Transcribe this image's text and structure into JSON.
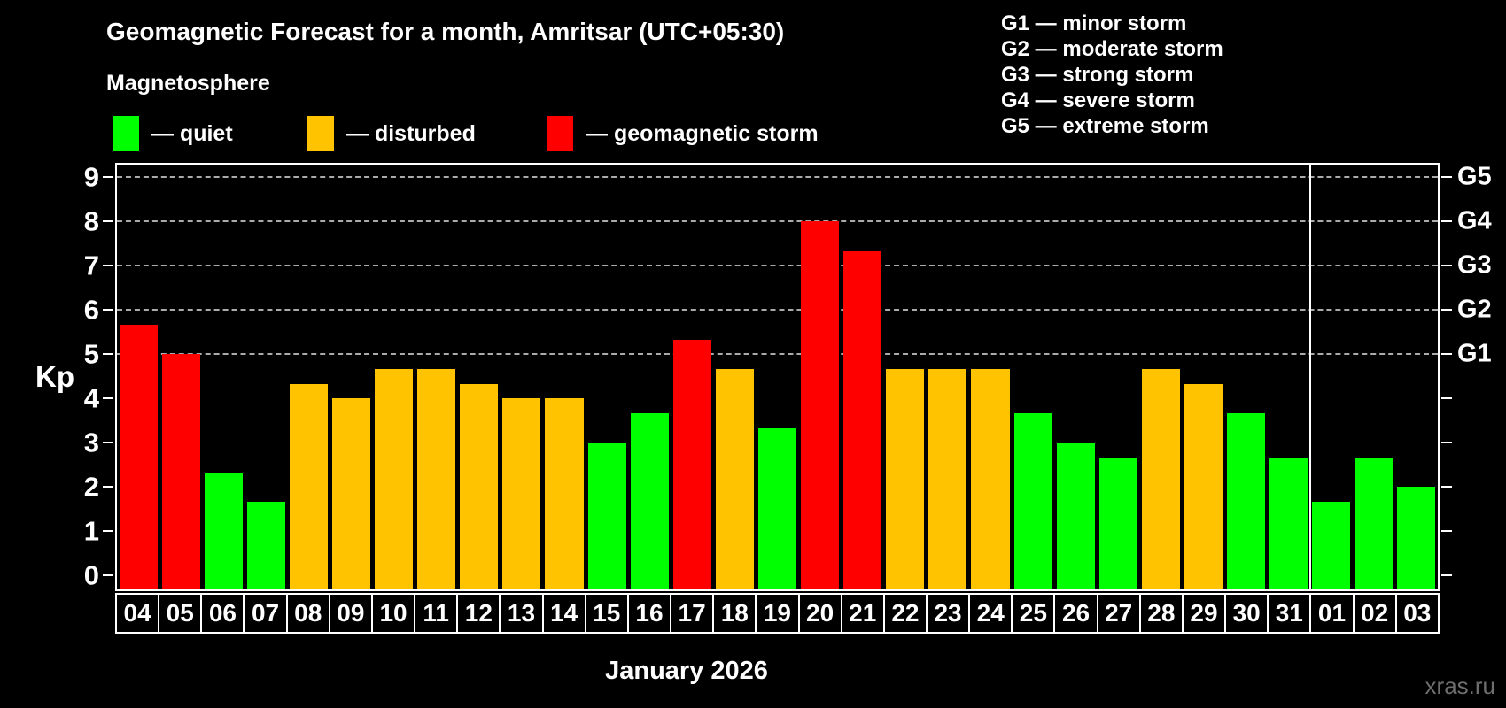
{
  "title": "Geomagnetic Forecast for a month, Amritsar (UTC+05:30)",
  "subtitle": "Magnetosphere",
  "legend": {
    "quiet": {
      "label": "— quiet",
      "color": "#00ff00"
    },
    "disturbed": {
      "label": "— disturbed",
      "color": "#ffc300"
    },
    "storm": {
      "label": "— geomagnetic storm",
      "color": "#ff0000"
    }
  },
  "g_legend": {
    "lines": [
      "G1 — minor storm",
      "G2 — moderate storm",
      "G3 — strong storm",
      "G4 — severe storm",
      "G5 — extreme storm"
    ]
  },
  "watermark": "xras.ru",
  "chart_data": {
    "type": "bar",
    "title": "Geomagnetic Forecast for a month, Amritsar (UTC+05:30)",
    "xlabel": "January 2026",
    "ylabel": "Kp",
    "ylim": [
      0,
      9
    ],
    "yticks": [
      0,
      1,
      2,
      3,
      4,
      5,
      6,
      7,
      8,
      9
    ],
    "gridlines_at": [
      5,
      6,
      7,
      8,
      9
    ],
    "grid_style": "dashed",
    "legend_position": "top",
    "right_axis_ticks": [
      {
        "kp": 5,
        "label": "G1"
      },
      {
        "kp": 6,
        "label": "G2"
      },
      {
        "kp": 7,
        "label": "G3"
      },
      {
        "kp": 8,
        "label": "G4"
      },
      {
        "kp": 9,
        "label": "G5"
      }
    ],
    "categories": [
      "04",
      "05",
      "06",
      "07",
      "08",
      "09",
      "10",
      "11",
      "12",
      "13",
      "14",
      "15",
      "16",
      "17",
      "18",
      "19",
      "20",
      "21",
      "22",
      "23",
      "24",
      "25",
      "26",
      "27",
      "28",
      "29",
      "30",
      "31",
      "01",
      "02",
      "03"
    ],
    "values": [
      5.67,
      5,
      2.33,
      1.67,
      4.33,
      4,
      4.67,
      4.67,
      4.33,
      4,
      4,
      3,
      3.67,
      5.33,
      4.67,
      3.33,
      8,
      7.33,
      4.67,
      4.67,
      4.67,
      3.67,
      3,
      2.67,
      4.67,
      4.33,
      3.67,
      2.67,
      1.67,
      2.67,
      2
    ],
    "color_rules": {
      "storm_min_kp": 5,
      "disturbed_min_kp": 4
    },
    "month_separator_after_index": 27
  }
}
